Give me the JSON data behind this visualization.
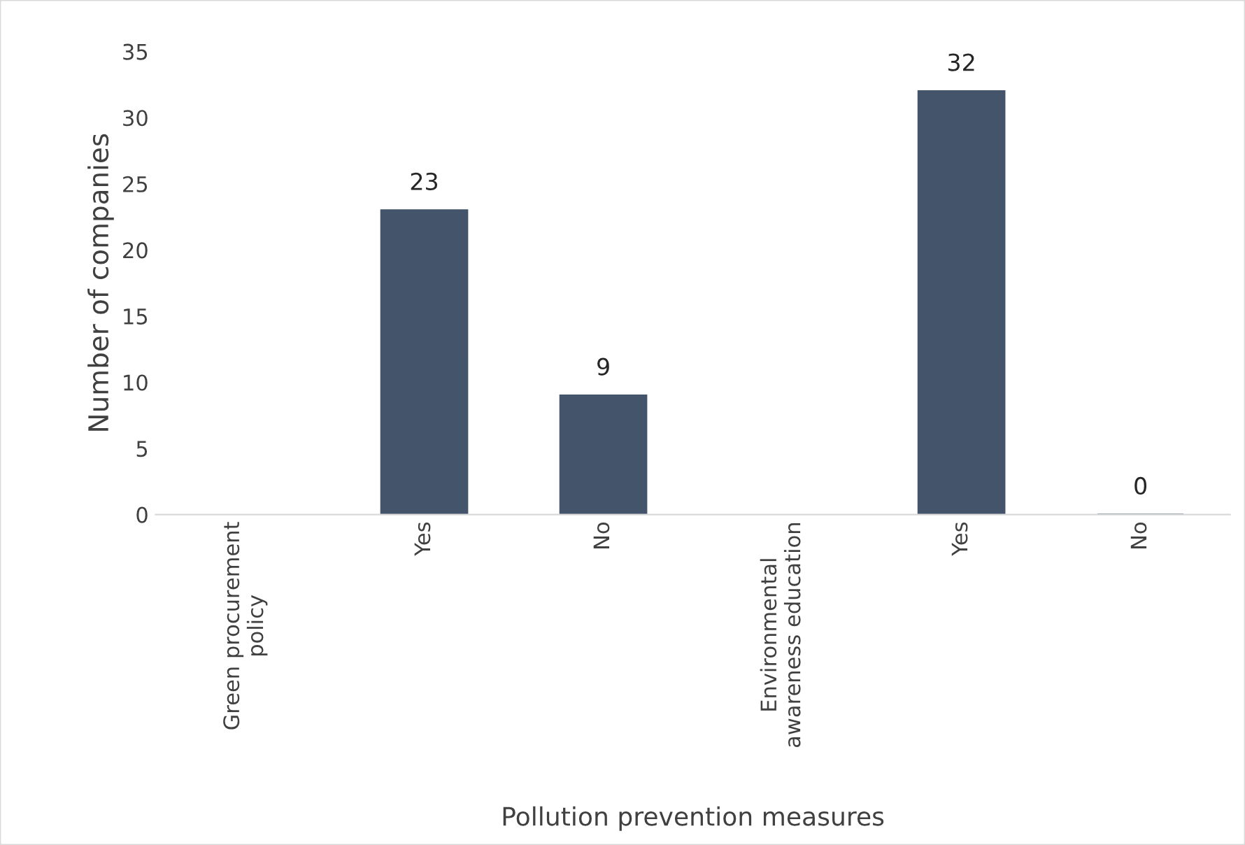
{
  "chart_data": {
    "type": "bar",
    "xlabel": "Pollution prevention measures",
    "ylabel": "Number of companies",
    "categories": [
      "Green procurement\npolicy",
      "Yes",
      "No",
      "Environmental\nawareness education",
      "Yes",
      "No"
    ],
    "values": [
      null,
      23,
      9,
      null,
      32,
      0
    ],
    "color": "#44546a",
    "ylim": [
      0,
      35
    ],
    "yticks": [
      0,
      5,
      10,
      15,
      20,
      25,
      30,
      35
    ],
    "grid": false,
    "data_labels": true
  }
}
